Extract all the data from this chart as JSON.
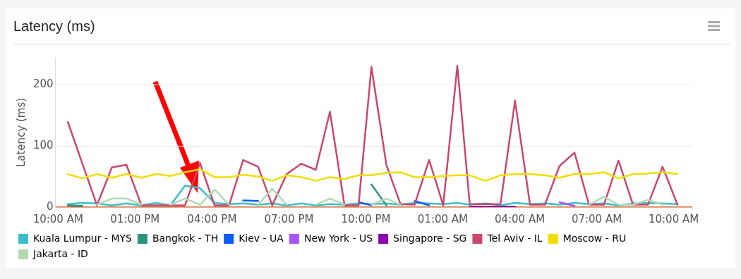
{
  "chart_data": {
    "type": "line",
    "title": "Latency (ms)",
    "ylabel": "Latency (ms)",
    "x": [
      "--01-01T10:23",
      "--01-01T10:57",
      "--01-01T11:31",
      "--01-01T12:06",
      "--01-01T12:40",
      "--01-01T13:15",
      "--01-01T13:49",
      "--01-01T14:23",
      "--01-01T14:57",
      "--01-01T15:32",
      "--01-01T16:06",
      "--01-01T16:40",
      "--01-01T17:13",
      "--01-01T17:48",
      "--01-01T18:21",
      "--01-01T18:55",
      "--01-01T19:29",
      "--01-01T20:03",
      "--01-01T20:36",
      "--01-01T21:10",
      "--01-01T21:43",
      "--01-01T22:13",
      "--01-01T22:48",
      "--01-01T23:21",
      "--01-01T23:54",
      "--01-02T00:28",
      "--01-02T01:01",
      "--01-02T01:34",
      "--01-02T02:03",
      "--01-02T02:40",
      "--01-02T03:15",
      "--01-02T03:49",
      "--01-02T04:24",
      "--01-02T04:59",
      "--01-02T05:33",
      "--01-02T06:08",
      "--01-02T06:42",
      "--01-02T07:17",
      "--01-02T07:51",
      "--01-02T08:25",
      "--01-02T09:00",
      "--01-02T09:34",
      "--01-02T10:09"
    ],
    "xlim": [
      "--01-01T09:54",
      "--01-02T10:42"
    ],
    "xticks": [
      {
        "value": "--01-01T10:00",
        "label": "10:00 AM"
      },
      {
        "value": "--01-01T13:00",
        "label": "01:00 PM"
      },
      {
        "value": "--01-01T16:00",
        "label": "04:00 PM"
      },
      {
        "value": "--01-01T19:00",
        "label": "07:00 PM"
      },
      {
        "value": "--01-01T22:00",
        "label": "10:00 PM"
      },
      {
        "value": "--01-02T01:00",
        "label": "01:00 AM"
      },
      {
        "value": "--01-02T04:00",
        "label": "04:00 AM"
      },
      {
        "value": "--01-02T07:00",
        "label": "07:00 AM"
      },
      {
        "value": "--01-02T10:00",
        "label": "10:00 AM"
      }
    ],
    "ylim": [
      0,
      244
    ],
    "yticks": [
      0,
      100,
      200
    ],
    "grid": "y",
    "legend": "bottom",
    "marker": "none",
    "line_style": "solid",
    "series": [
      {
        "name": "Kuala Lumpur - MYS",
        "color": "#3dbdc9",
        "values": [
          5,
          7,
          6,
          3,
          6,
          3,
          7,
          3,
          35,
          31,
          7,
          5,
          6,
          4,
          6,
          3,
          6,
          3,
          5,
          4,
          6,
          5,
          6,
          4,
          7,
          6,
          5,
          7,
          4,
          6,
          3,
          7,
          5,
          6,
          4,
          7,
          5,
          6,
          3,
          6,
          7,
          6,
          5
        ]
      },
      {
        "name": "Bangkok - TH",
        "color": "#2a937a",
        "values": [
          3,
          2,
          null,
          null,
          null,
          null,
          null,
          null,
          null,
          null,
          null,
          null,
          null,
          null,
          null,
          null,
          null,
          null,
          null,
          null,
          null,
          37,
          3,
          null,
          null,
          null,
          null,
          null,
          null,
          null,
          null,
          null,
          null,
          null,
          null,
          null,
          null,
          null,
          null,
          null,
          null,
          null,
          null
        ]
      },
      {
        "name": "Kiev - UA",
        "color": "#0a5cf5",
        "values": [
          null,
          null,
          null,
          null,
          null,
          null,
          null,
          null,
          null,
          null,
          null,
          null,
          11,
          10,
          null,
          null,
          null,
          null,
          null,
          null,
          8,
          3,
          null,
          null,
          10,
          3,
          null,
          null,
          null,
          null,
          null,
          null,
          null,
          null,
          null,
          null,
          null,
          null,
          null,
          null,
          null,
          null,
          null
        ]
      },
      {
        "name": "New York - US",
        "color": "#a855f7",
        "values": [
          null,
          null,
          null,
          null,
          null,
          null,
          null,
          null,
          null,
          null,
          null,
          null,
          null,
          null,
          null,
          null,
          null,
          null,
          null,
          null,
          null,
          null,
          null,
          null,
          null,
          null,
          null,
          null,
          null,
          null,
          null,
          null,
          null,
          null,
          8,
          2,
          null,
          null,
          null,
          null,
          null,
          null,
          null
        ]
      },
      {
        "name": "Singapore - SG",
        "color": "#8a06b0",
        "values": [
          null,
          null,
          null,
          null,
          null,
          null,
          null,
          null,
          null,
          null,
          null,
          null,
          null,
          null,
          null,
          null,
          null,
          null,
          null,
          null,
          null,
          null,
          null,
          null,
          null,
          null,
          null,
          null,
          1,
          1,
          1,
          1,
          null,
          null,
          null,
          null,
          null,
          null,
          null,
          null,
          null,
          null,
          null
        ]
      },
      {
        "name": "Tel Aviv - IL",
        "color": "#c8486f",
        "values": [
          139,
          71,
          3,
          65,
          69,
          3,
          3,
          3,
          3,
          72,
          3,
          3,
          77,
          66,
          3,
          54,
          71,
          61,
          156,
          3,
          3,
          229,
          69,
          5,
          4,
          77,
          3,
          231,
          5,
          5,
          5,
          174,
          4,
          4,
          67,
          89,
          4,
          4,
          76,
          4,
          4,
          66,
          4
        ]
      },
      {
        "name": "Moscow - RU",
        "color": "#f2dc00",
        "values": [
          54,
          47,
          54,
          48,
          54,
          48,
          54,
          51,
          57,
          62,
          49,
          49,
          53,
          50,
          43,
          52,
          49,
          43,
          49,
          46,
          52,
          52,
          56,
          57,
          49,
          49,
          51,
          52,
          52,
          43,
          52,
          54,
          54,
          52,
          48,
          54,
          54,
          57,
          47,
          54,
          55,
          57,
          54
        ]
      },
      {
        "name": "Jakarta - ID",
        "color": "#b3d9b3",
        "values": [
          null,
          null,
          4,
          14,
          14,
          4,
          null,
          4,
          14,
          4,
          29,
          4,
          null,
          4,
          30,
          4,
          null,
          4,
          14,
          4,
          null,
          4,
          14,
          4,
          null,
          null,
          null,
          null,
          null,
          null,
          null,
          null,
          null,
          null,
          null,
          null,
          4,
          17,
          4,
          4,
          12,
          4,
          null
        ]
      }
    ]
  }
}
